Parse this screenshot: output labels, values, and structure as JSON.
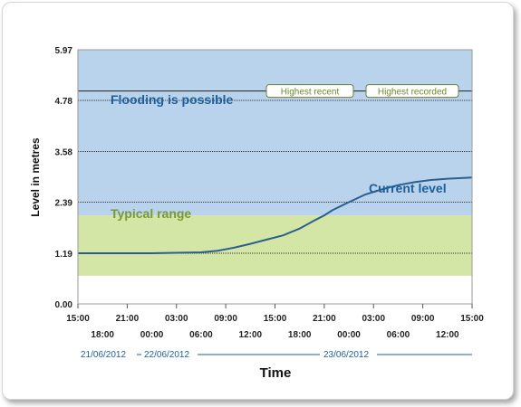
{
  "chart_data": {
    "type": "line",
    "xlabel": "Time",
    "ylabel": "Level in metres",
    "ylim": [
      0,
      5.97
    ],
    "y_ticks": [
      "0.00",
      "1.19",
      "2.39",
      "3.58",
      "4.78",
      "5.97"
    ],
    "x_range_hours": [
      0,
      48
    ],
    "x_ticks_top": [
      "15:00",
      "21:00",
      "03:00",
      "09:00",
      "15:00",
      "21:00",
      "03:00",
      "09:00",
      "15:00"
    ],
    "x_ticks_bottom": [
      "18:00",
      "00:00",
      "06:00",
      "12:00",
      "18:00",
      "00:00",
      "06:00",
      "12:00"
    ],
    "dates": [
      "21/06/2012",
      "22/06/2012",
      "23/06/2012"
    ],
    "bands": [
      {
        "label": "Typical range",
        "from": 0.66,
        "to": 2.08,
        "color": "#d4e6a5",
        "text_color": "#7a9a2f"
      },
      {
        "label": "Flooding is possible",
        "from": 2.08,
        "to": 5.97,
        "color": "#bad3ec",
        "text_color": "#1f5f99"
      }
    ],
    "reference_lines": [
      {
        "label": "Highest recent",
        "value": 5.0
      },
      {
        "label": "Highest recorded",
        "value": 5.0
      }
    ],
    "series": [
      {
        "name": "Current level",
        "color": "#2b5f8f",
        "x": [
          0,
          3,
          6,
          9,
          12,
          15,
          17,
          19,
          21,
          23,
          25,
          27,
          29,
          30,
          31,
          33,
          35,
          37,
          39,
          41,
          43,
          45,
          47,
          48
        ],
        "y": [
          1.19,
          1.19,
          1.19,
          1.19,
          1.2,
          1.21,
          1.25,
          1.32,
          1.41,
          1.51,
          1.61,
          1.77,
          1.98,
          2.08,
          2.2,
          2.39,
          2.57,
          2.69,
          2.79,
          2.86,
          2.91,
          2.94,
          2.96,
          2.97
        ]
      }
    ]
  }
}
